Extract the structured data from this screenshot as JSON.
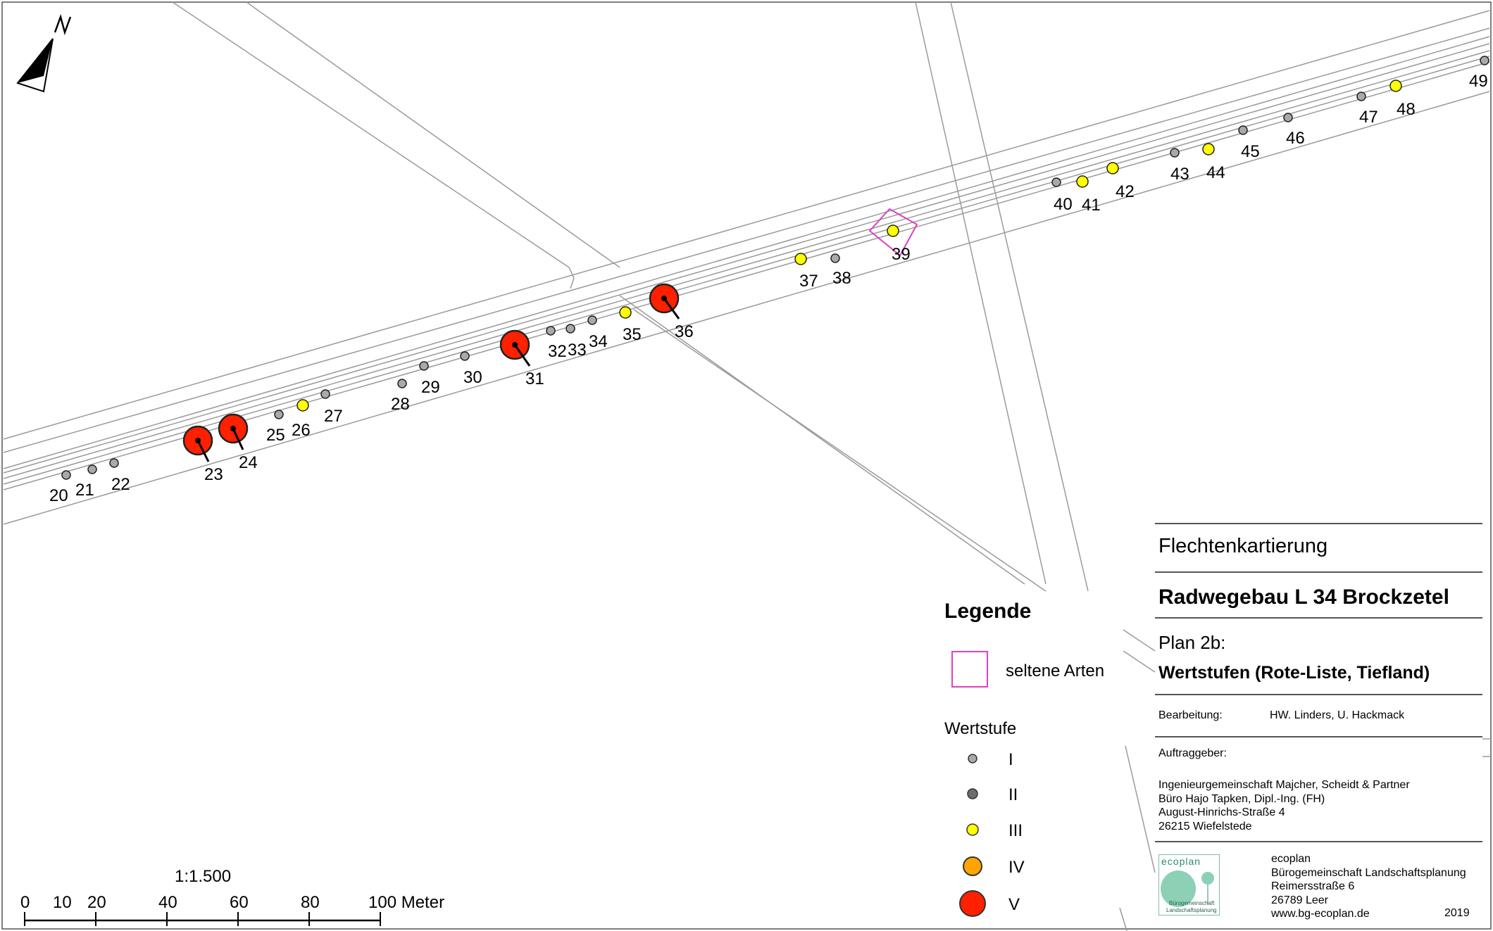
{
  "north_arrow": {
    "letter": "N"
  },
  "map_points": [
    {
      "id": "20",
      "level": "I"
    },
    {
      "id": "21",
      "level": "I"
    },
    {
      "id": "22",
      "level": "I"
    },
    {
      "id": "23",
      "level": "V"
    },
    {
      "id": "24",
      "level": "V"
    },
    {
      "id": "25",
      "level": "I"
    },
    {
      "id": "26",
      "level": "III"
    },
    {
      "id": "27",
      "level": "I"
    },
    {
      "id": "28",
      "level": "I"
    },
    {
      "id": "29",
      "level": "I"
    },
    {
      "id": "30",
      "level": "I"
    },
    {
      "id": "31",
      "level": "V"
    },
    {
      "id": "32",
      "level": "I"
    },
    {
      "id": "33",
      "level": "I"
    },
    {
      "id": "34",
      "level": "I"
    },
    {
      "id": "35",
      "level": "III"
    },
    {
      "id": "36",
      "level": "V"
    },
    {
      "id": "37",
      "level": "III"
    },
    {
      "id": "38",
      "level": "I"
    },
    {
      "id": "39",
      "level": "III",
      "rare": true
    },
    {
      "id": "40",
      "level": "I"
    },
    {
      "id": "41",
      "level": "III"
    },
    {
      "id": "42",
      "level": "III"
    },
    {
      "id": "43",
      "level": "I"
    },
    {
      "id": "44",
      "level": "III"
    },
    {
      "id": "45",
      "level": "I"
    },
    {
      "id": "46",
      "level": "I"
    },
    {
      "id": "47",
      "level": "I"
    },
    {
      "id": "48",
      "level": "III"
    },
    {
      "id": "49",
      "level": "I"
    }
  ],
  "colors": {
    "I": "#a9a9a9",
    "II": "#6e6e6e",
    "III": "#ffff00",
    "IV": "#ffa500",
    "V": "#ff2000",
    "rare": "#e040c0",
    "lines": "#9a9a9a"
  },
  "legend": {
    "title": "Legende",
    "rare_label": "seltene Arten",
    "wertstufe_title": "Wertstufe",
    "levels": [
      "I",
      "II",
      "III",
      "IV",
      "V"
    ]
  },
  "scale": {
    "ratio": "1:1.500",
    "ticks": [
      "0",
      "10",
      "20",
      "40",
      "60",
      "80",
      "100 Meter"
    ]
  },
  "title_block": {
    "project_type": "Flechtenkartierung",
    "project": "Radwegebau L 34 Brockzetel",
    "plan": "Plan 2b:",
    "plan_title": "Wertstufen (Rote-Liste, Tiefland)",
    "editing_label": "Bearbeitung:",
    "editing_value": "HW. Linders, U. Hackmack",
    "client_label": "Auftraggeber:",
    "client_lines": [
      "Ingenieurgemeinschaft Majcher, Scheidt & Partner",
      "Büro Hajo Tapken, Dipl.-Ing. (FH)",
      "August-Hinrichs-Straße 4",
      "26215 Wiefelstede"
    ],
    "logo_text": "ecoplan",
    "logo_sub1": "Bürogemeinschaft",
    "logo_sub2": "Landschaftsplanung",
    "office_lines": [
      "ecoplan",
      "Bürogemeinschaft Landschaftsplanung",
      "Reimersstraße 6",
      "26789 Leer",
      "www.bg-ecoplan.de"
    ],
    "year": "2019"
  }
}
